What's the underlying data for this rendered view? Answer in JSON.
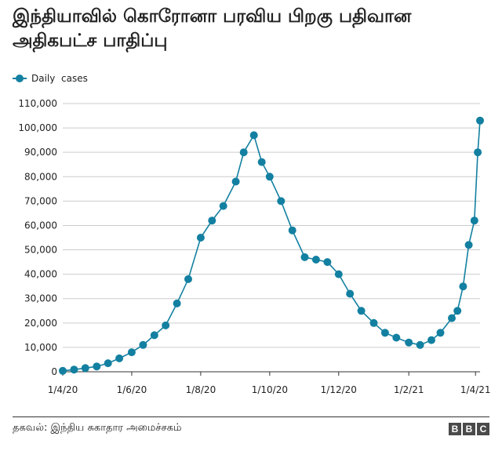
{
  "title": "இந்தியாவில் கொரோனா பரவிய பிறகு பதிவான அதிகபட்ச பாதிப்பு",
  "source": "தகவல்: இந்திய சுகாதார அமைச்சகம்",
  "logo": [
    "B",
    "B",
    "C"
  ],
  "colors": {
    "series": "#1380A1",
    "grid": "#cccccc",
    "axis": "#333333",
    "text": "#222222"
  },
  "chart_data": {
    "type": "line",
    "markers": true,
    "legend_position": "top-left",
    "grid": {
      "y": true,
      "x": false
    },
    "ylim": [
      0,
      110000
    ],
    "yticks": [
      0,
      10000,
      20000,
      30000,
      40000,
      50000,
      60000,
      70000,
      80000,
      90000,
      100000,
      110000
    ],
    "ytick_labels": [
      "0",
      "10,000",
      "20,000",
      "30,000",
      "40,000",
      "50,000",
      "60,000",
      "70,000",
      "80,000",
      "90,000",
      "100,000",
      "110,000"
    ],
    "xlim": [
      "2020-04-01",
      "2021-04-05"
    ],
    "xticks": [
      "2020-04-01",
      "2020-06-01",
      "2020-08-01",
      "2020-10-01",
      "2020-12-01",
      "2021-02-01",
      "2021-04-01"
    ],
    "xtick_labels": [
      "1/4/20",
      "1/6/20",
      "1/8/20",
      "1/10/20",
      "1/12/20",
      "1/2/21",
      "1/4/21"
    ],
    "series": [
      {
        "name": "Daily  cases",
        "x": [
          "2020-04-01",
          "2020-04-11",
          "2020-04-21",
          "2020-05-01",
          "2020-05-11",
          "2020-05-21",
          "2020-06-01",
          "2020-06-11",
          "2020-06-21",
          "2020-07-01",
          "2020-07-11",
          "2020-07-21",
          "2020-08-01",
          "2020-08-11",
          "2020-08-21",
          "2020-09-01",
          "2020-09-08",
          "2020-09-17",
          "2020-09-24",
          "2020-10-01",
          "2020-10-11",
          "2020-10-21",
          "2020-11-01",
          "2020-11-11",
          "2020-11-21",
          "2020-12-01",
          "2020-12-11",
          "2020-12-21",
          "2021-01-01",
          "2021-01-11",
          "2021-01-21",
          "2021-02-01",
          "2021-02-11",
          "2021-02-21",
          "2021-03-01",
          "2021-03-11",
          "2021-03-16",
          "2021-03-21",
          "2021-03-26",
          "2021-03-31",
          "2021-04-03",
          "2021-04-05"
        ],
        "y": [
          400,
          900,
          1500,
          2200,
          3500,
          5500,
          8000,
          11000,
          15000,
          19000,
          28000,
          38000,
          55000,
          62000,
          68000,
          78000,
          90000,
          97000,
          86000,
          80000,
          70000,
          58000,
          47000,
          46000,
          45000,
          40000,
          32000,
          25000,
          20000,
          16000,
          14000,
          12000,
          11000,
          13000,
          16000,
          22000,
          25000,
          35000,
          52000,
          62000,
          90000,
          103000
        ]
      }
    ]
  }
}
